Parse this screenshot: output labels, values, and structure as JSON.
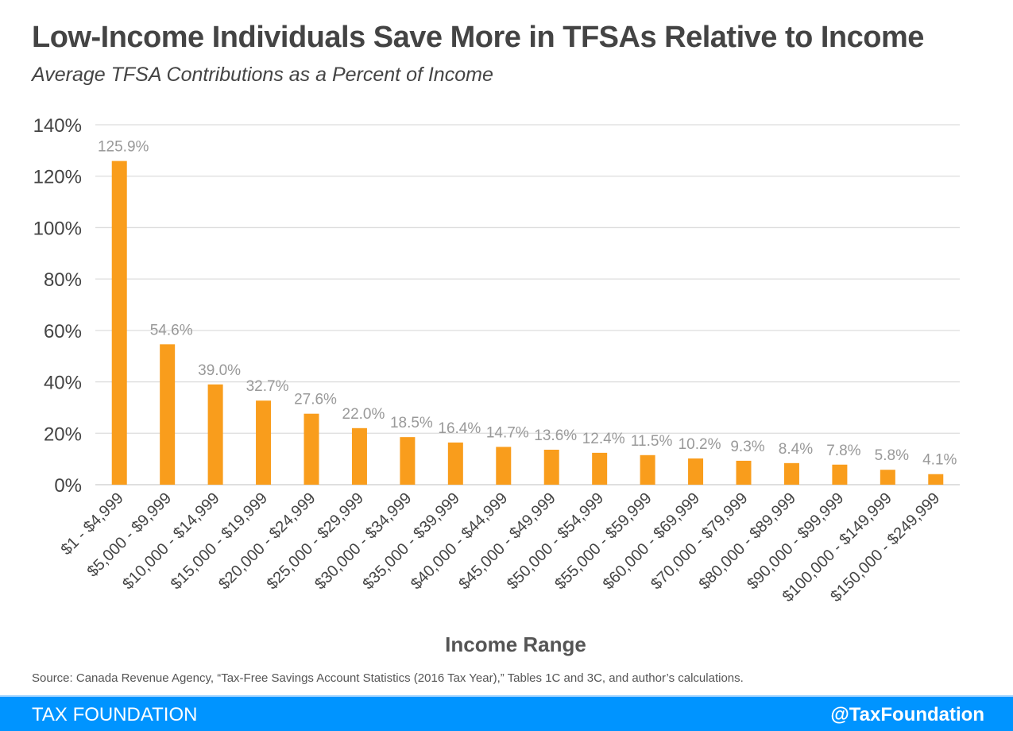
{
  "header": {
    "title": "Low-Income Individuals Save More in TFSAs Relative to Income",
    "subtitle": "Average TFSA Contributions as a Percent of Income"
  },
  "source": "Source: Canada Revenue Agency, “Tax-Free Savings Account Statistics (2016 Tax Year),” Tables 1C and 3C, and author’s calculations.",
  "footer": {
    "brand": "TAX FOUNDATION",
    "handle": "@TaxFoundation",
    "color": "#0094ff"
  },
  "chart_data": {
    "type": "bar",
    "title": "Low-Income Individuals Save More in TFSAs Relative to Income",
    "subtitle": "Average TFSA Contributions as a Percent of Income",
    "xlabel": "Income Range",
    "ylabel": "",
    "ylim": [
      0,
      140
    ],
    "yticks": [
      0,
      20,
      40,
      60,
      80,
      100,
      120,
      140
    ],
    "ytick_labels": [
      "0%",
      "20%",
      "40%",
      "60%",
      "80%",
      "100%",
      "120%",
      "140%"
    ],
    "grid": true,
    "bar_color": "#f99d1c",
    "categories": [
      "$1 - $4,999",
      "$5,000 - $9,999",
      "$10,000 - $14,999",
      "$15,000 - $19,999",
      "$20,000 - $24,999",
      "$25,000 - $29,999",
      "$30,000 - $34,999",
      "$35,000 - $39,999",
      "$40,000 - $44,999",
      "$45,000 - $49,999",
      "$50,000 - $54,999",
      "$55,000 - $59,999",
      "$60,000 - $69,999",
      "$70,000 - $79,999",
      "$80,000 - $89,999",
      "$90,000 - $99,999",
      "$100,000 - $149,999",
      "$150,000 - $249,999"
    ],
    "values": [
      125.9,
      54.6,
      39.0,
      32.7,
      27.6,
      22.0,
      18.5,
      16.4,
      14.7,
      13.6,
      12.4,
      11.5,
      10.2,
      9.3,
      8.4,
      7.8,
      5.8,
      4.1
    ],
    "data_labels": [
      "125.9%",
      "54.6%",
      "39.0%",
      "32.7%",
      "27.6%",
      "22.0%",
      "18.5%",
      "16.4%",
      "14.7%",
      "13.6%",
      "12.4%",
      "11.5%",
      "10.2%",
      "9.3%",
      "8.4%",
      "7.8%",
      "5.8%",
      "4.1%"
    ]
  }
}
